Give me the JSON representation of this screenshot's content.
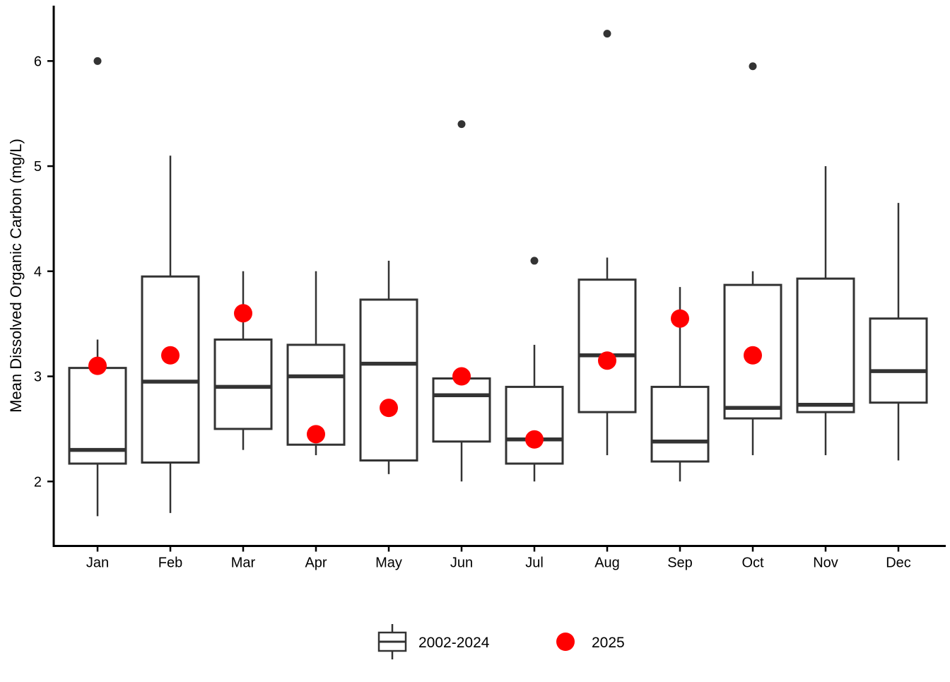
{
  "chart_data": {
    "type": "boxplot",
    "title": "",
    "xlabel": "",
    "ylabel": "Mean Dissolved Organic Carbon (mg/L)",
    "ylim": [
      1.4,
      6.52
    ],
    "y_ticks": [
      2,
      3,
      4,
      5,
      6
    ],
    "grid": false,
    "categories": [
      "Jan",
      "Feb",
      "Mar",
      "Apr",
      "May",
      "Jun",
      "Jul",
      "Aug",
      "Sep",
      "Oct",
      "Nov",
      "Dec"
    ],
    "series": [
      {
        "name": "2002-2024",
        "type": "box",
        "color": "#333333",
        "fill": "#ffffff",
        "boxes": [
          {
            "whisker_low": 1.67,
            "q1": 2.17,
            "median": 2.3,
            "q3": 3.08,
            "whisker_high": 3.35,
            "outliers": [
              6.0
            ]
          },
          {
            "whisker_low": 1.7,
            "q1": 2.18,
            "median": 2.95,
            "q3": 3.95,
            "whisker_high": 5.1,
            "outliers": []
          },
          {
            "whisker_low": 2.3,
            "q1": 2.5,
            "median": 2.9,
            "q3": 3.35,
            "whisker_high": 4.0,
            "outliers": []
          },
          {
            "whisker_low": 2.25,
            "q1": 2.35,
            "median": 3.0,
            "q3": 3.3,
            "whisker_high": 4.0,
            "outliers": []
          },
          {
            "whisker_low": 2.07,
            "q1": 2.2,
            "median": 3.12,
            "q3": 3.73,
            "whisker_high": 4.1,
            "outliers": []
          },
          {
            "whisker_low": 2.0,
            "q1": 2.38,
            "median": 2.82,
            "q3": 2.98,
            "whisker_high": 2.98,
            "outliers": [
              5.4
            ]
          },
          {
            "whisker_low": 2.0,
            "q1": 2.17,
            "median": 2.4,
            "q3": 2.9,
            "whisker_high": 3.3,
            "outliers": [
              4.1
            ]
          },
          {
            "whisker_low": 2.25,
            "q1": 2.66,
            "median": 3.2,
            "q3": 3.92,
            "whisker_high": 4.13,
            "outliers": [
              6.26
            ]
          },
          {
            "whisker_low": 2.0,
            "q1": 2.19,
            "median": 2.38,
            "q3": 2.9,
            "whisker_high": 3.85,
            "outliers": []
          },
          {
            "whisker_low": 2.25,
            "q1": 2.6,
            "median": 2.7,
            "q3": 3.87,
            "whisker_high": 4.0,
            "outliers": [
              5.95
            ]
          },
          {
            "whisker_low": 2.25,
            "q1": 2.66,
            "median": 2.73,
            "q3": 3.93,
            "whisker_high": 5.0,
            "outliers": []
          },
          {
            "whisker_low": 2.2,
            "q1": 2.75,
            "median": 3.05,
            "q3": 3.55,
            "whisker_high": 4.65,
            "outliers": []
          }
        ]
      },
      {
        "name": "2025",
        "type": "points",
        "color": "#FF0000",
        "values": [
          3.1,
          3.2,
          3.6,
          2.45,
          2.7,
          3.0,
          2.4,
          3.15,
          3.55,
          3.2,
          null,
          null
        ]
      }
    ],
    "legend": {
      "position": "bottom-center",
      "entries": [
        {
          "label": "2002-2024",
          "symbol": "boxplot"
        },
        {
          "label": "2025",
          "symbol": "filled-circle",
          "color": "#FF0000"
        }
      ]
    },
    "colors": {
      "box_stroke": "#333333",
      "outlier": "#333333",
      "point_2025": "#FF0000",
      "axis": "#000000",
      "background": "#ffffff"
    }
  }
}
